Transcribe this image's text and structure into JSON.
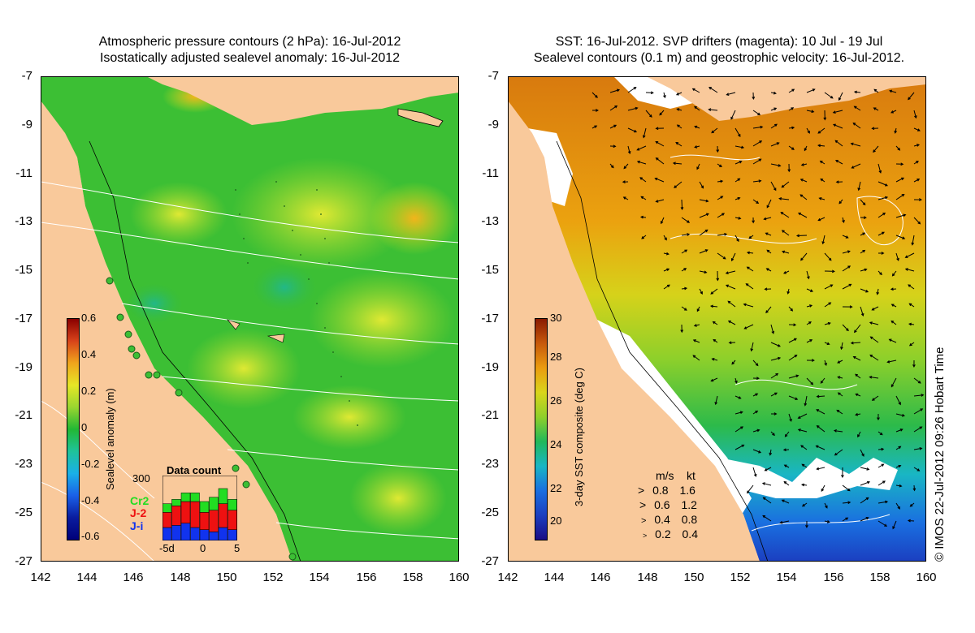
{
  "left_panel": {
    "title_line1": "Atmospheric pressure contours (2 hPa): 16-Jul-2012",
    "title_line2": "Isostatically adjusted sealevel anomaly: 16-Jul-2012",
    "colorbar": {
      "label": "Sealevel anomaly (m)",
      "ticks": [
        "0.6",
        "0.4",
        "0.2",
        "0",
        "-0.2",
        "-0.4",
        "-0.6"
      ]
    },
    "data_count": {
      "title": "Data count",
      "ymax_label": "300",
      "series_labels": [
        "Cr2",
        "J-2",
        "J-i"
      ],
      "series_colors": [
        "#22dd22",
        "#ee1111",
        "#1133ee"
      ],
      "x_labels": [
        "-5d",
        "0",
        "5"
      ],
      "bars": [
        {
          "ji": 60,
          "j2": 70,
          "cr2": 40
        },
        {
          "ji": 70,
          "j2": 90,
          "cr2": 30
        },
        {
          "ji": 80,
          "j2": 100,
          "cr2": 40
        },
        {
          "ji": 60,
          "j2": 120,
          "cr2": 40
        },
        {
          "ji": 50,
          "j2": 80,
          "cr2": 50
        },
        {
          "ji": 40,
          "j2": 100,
          "cr2": 60
        },
        {
          "ji": 60,
          "j2": 110,
          "cr2": 70
        },
        {
          "ji": 50,
          "j2": 90,
          "cr2": 50
        }
      ]
    }
  },
  "right_panel": {
    "title_line1": "SST: 16-Jul-2012. SVP drifters (magenta): 10 Jul - 19 Jul",
    "title_line2": "Sealevel contours (0.1 m) and geostrophic velocity: 16-Jul-2012.",
    "colorbar": {
      "label": "3-day SST composite (deg C)",
      "ticks": [
        "30",
        "28",
        "26",
        "24",
        "22",
        "20"
      ]
    },
    "speed_legend": {
      "header_ms": "m/s",
      "header_kt": "kt",
      "rows": [
        {
          "ms": "0.8",
          "kt": "1.6"
        },
        {
          "ms": "0.6",
          "kt": "1.2"
        },
        {
          "ms": "0.4",
          "kt": "0.8"
        },
        {
          "ms": "0.2",
          "kt": "0.4"
        }
      ]
    }
  },
  "axes": {
    "lat_ticks": [
      "-7",
      "-9",
      "-11",
      "-13",
      "-15",
      "-17",
      "-19",
      "-21",
      "-23",
      "-25",
      "-27"
    ],
    "lon_ticks": [
      "142",
      "144",
      "146",
      "148",
      "150",
      "152",
      "154",
      "156",
      "158",
      "160"
    ]
  },
  "copyright": "© IMOS 22-Jul-2012 09:26 Hobart Time",
  "colors": {
    "land": "#f9c99b",
    "sla_low": "#00007a",
    "sla_mid": "#22bb22",
    "sla_high": "#8a0000",
    "sst_low": "#1b0d85",
    "sst_mid": "#bfe81d",
    "sst_high": "#8a1a00"
  }
}
